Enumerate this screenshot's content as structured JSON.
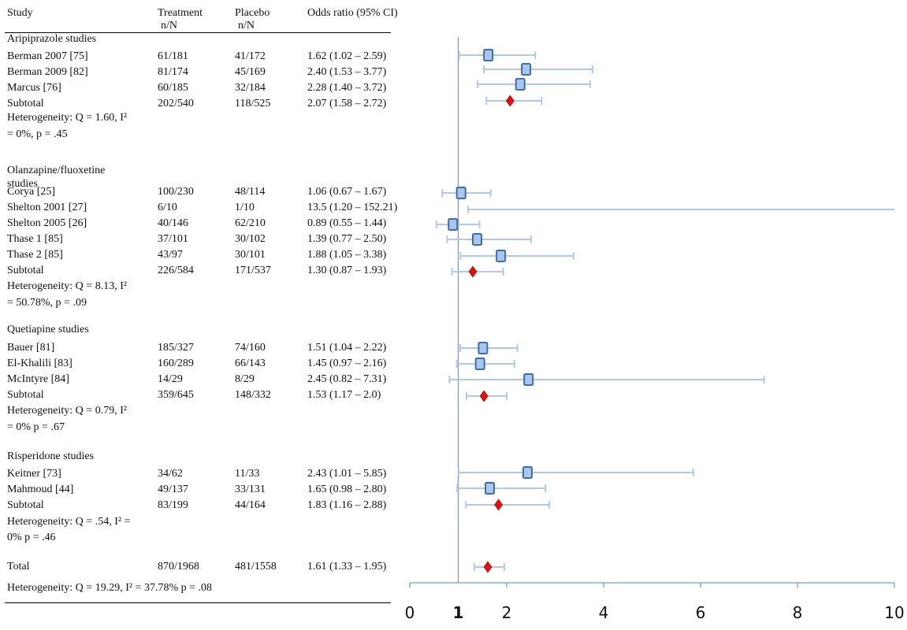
{
  "header": {
    "study": "Study",
    "treatment": "Treatment",
    "treatment_sub": "n/N",
    "placebo": "Placebo",
    "placebo_sub": "n/N",
    "or": "Odds ratio (95% CI)"
  },
  "groups": [
    {
      "title": "Aripiprazole studies",
      "rows": [
        {
          "study": "Berman 2007 [75]",
          "treatment": "61/181",
          "placebo": "41/172",
          "or_text": "1.62 (1.02 – 2.59)"
        },
        {
          "study": "Berman 2009 [82]",
          "treatment": "81/174",
          "placebo": "45/169",
          "or_text": "2.40 (1.53 – 3.77)"
        },
        {
          "study": "Marcus [76]",
          "treatment": "60/185",
          "placebo": "32/184",
          "or_text": "2.28 (1.40 – 3.72)"
        }
      ],
      "subtotal": {
        "label": "Subtotal",
        "treatment": "202/540",
        "placebo": "118/525",
        "or_text": "2.07 (1.58 – 2.72)"
      },
      "het": [
        "Heterogeneity: Q = 1.60, I²",
        "= 0%, p = .45"
      ]
    },
    {
      "title": "Olanzapine/fluoxetine",
      "title2": "studies",
      "rows": [
        {
          "study": "Corya [25]",
          "treatment": "100/230",
          "placebo": "48/114",
          "or_text": "1.06 (0.67 – 1.67)"
        },
        {
          "study": "Shelton 2001 [27]",
          "treatment": "6/10",
          "placebo": "1/10",
          "or_text": "13.5 (1.20 – 152.21)"
        },
        {
          "study": "Shelton 2005 [26]",
          "treatment": "40/146",
          "placebo": "62/210",
          "or_text": "0.89 (0.55 – 1.44)"
        },
        {
          "study": "Thase 1 [85]",
          "treatment": "37/101",
          "placebo": "30/102",
          "or_text": "1.39 (0.77 – 2.50)"
        },
        {
          "study": "Thase 2 [85]",
          "treatment": "43/97",
          "placebo": "30/101",
          "or_text": "1.88 (1.05 – 3.38)"
        }
      ],
      "subtotal": {
        "label": "Subtotal",
        "treatment": "226/584",
        "placebo": "171/537",
        "or_text": "1.30 (0.87 – 1.93)"
      },
      "het": [
        "Heterogeneity: Q = 8.13,  I²",
        "= 50.78%, p = .09"
      ]
    },
    {
      "title": "Quetiapine studies",
      "rows": [
        {
          "study": "Bauer [81]",
          "treatment": "185/327",
          "placebo": "74/160",
          "or_text": "1.51 (1.04 – 2.22)"
        },
        {
          "study": "El-Khalili [83]",
          "treatment": "160/289",
          "placebo": "66/143",
          "or_text": "1.45 (0.97 – 2.16)"
        },
        {
          "study": "McIntyre [84]",
          "treatment": "14/29",
          "placebo": "8/29",
          "or_text": "2.45 (0.82 – 7.31)"
        }
      ],
      "subtotal": {
        "label": "Subtotal",
        "treatment": "359/645",
        "placebo": "148/332",
        "or_text": "1.53 (1.17 – 2.0)"
      },
      "het": [
        "Heterogeneity: Q = 0.79, I²",
        "= 0% p = .67"
      ]
    },
    {
      "title": "Risperidone studies",
      "rows": [
        {
          "study": "Keitner [73]",
          "treatment": "34/62",
          "placebo": "11/33",
          "or_text": "2.43 (1.01 – 5.85)"
        },
        {
          "study": "Mahmoud [44]",
          "treatment": "49/137",
          "placebo": "33/131",
          "or_text": "1.65 (0.98 – 2.80)"
        }
      ],
      "subtotal": {
        "label": "Subtotal",
        "treatment": "83/199",
        "placebo": "44/164",
        "or_text": "1.83 (1.16 – 2.88)"
      },
      "het": [
        "Heterogeneity: Q = .54, I² =",
        "0% p = .46"
      ]
    }
  ],
  "total": {
    "label": "Total",
    "treatment": "870/1968",
    "placebo": "481/1558",
    "or_text": "1.61 (1.33 – 1.95)"
  },
  "total_het": "Heterogeneity:  Q = 19.29, I² = 37.78% p = .08",
  "colors": {
    "axis": "#6f9fce",
    "ci": "#b4c8e6",
    "box_fill": "#aac6ec",
    "box_stroke": "#3d6ea8",
    "diamond": "#dd1111"
  },
  "chart_data": {
    "type": "forest",
    "xlim": [
      0,
      10
    ],
    "ticks": [
      0,
      2,
      4,
      6,
      8,
      10
    ],
    "tick_labels": [
      "0",
      "2",
      "4",
      "6",
      "8",
      "10"
    ],
    "reference_line": 1,
    "reference_label": "1",
    "rows": [
      {
        "kind": "study",
        "or": 1.62,
        "lo": 1.02,
        "hi": 2.59
      },
      {
        "kind": "study",
        "or": 2.4,
        "lo": 1.53,
        "hi": 3.77
      },
      {
        "kind": "study",
        "or": 2.28,
        "lo": 1.4,
        "hi": 3.72
      },
      {
        "kind": "subtotal",
        "or": 2.07,
        "lo": 1.58,
        "hi": 2.72
      },
      {
        "kind": "study",
        "or": 1.06,
        "lo": 0.67,
        "hi": 1.67
      },
      {
        "kind": "study",
        "or": 13.5,
        "lo": 1.2,
        "hi": 152.21
      },
      {
        "kind": "study",
        "or": 0.89,
        "lo": 0.55,
        "hi": 1.44
      },
      {
        "kind": "study",
        "or": 1.39,
        "lo": 0.77,
        "hi": 2.5
      },
      {
        "kind": "study",
        "or": 1.88,
        "lo": 1.05,
        "hi": 3.38
      },
      {
        "kind": "subtotal",
        "or": 1.3,
        "lo": 0.87,
        "hi": 1.93
      },
      {
        "kind": "study",
        "or": 1.51,
        "lo": 1.04,
        "hi": 2.22
      },
      {
        "kind": "study",
        "or": 1.45,
        "lo": 0.97,
        "hi": 2.16
      },
      {
        "kind": "study",
        "or": 2.45,
        "lo": 0.82,
        "hi": 7.31
      },
      {
        "kind": "subtotal",
        "or": 1.53,
        "lo": 1.17,
        "hi": 2.0
      },
      {
        "kind": "study",
        "or": 2.43,
        "lo": 1.01,
        "hi": 5.85
      },
      {
        "kind": "study",
        "or": 1.65,
        "lo": 0.98,
        "hi": 2.8
      },
      {
        "kind": "subtotal",
        "or": 1.83,
        "lo": 1.16,
        "hi": 2.88
      },
      {
        "kind": "total",
        "or": 1.61,
        "lo": 1.33,
        "hi": 1.95
      }
    ]
  }
}
